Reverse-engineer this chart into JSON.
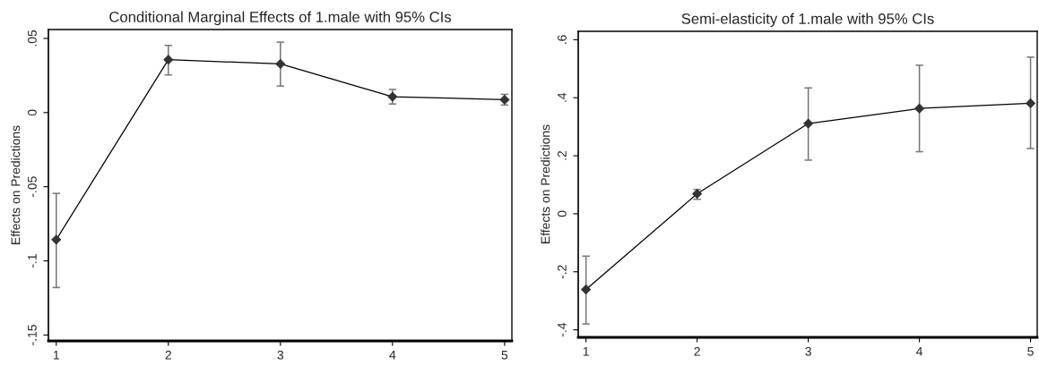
{
  "chart_data": [
    {
      "type": "line",
      "title": "Conditional Marginal Effects of 1.male with 95% CIs",
      "ylabel": "Effects on Predictions",
      "x": [
        1,
        2,
        3,
        4,
        5
      ],
      "xlim": [
        0.93,
        5.065
      ],
      "xticks": [
        1,
        2,
        3,
        4,
        5
      ],
      "ylim": [
        -0.154,
        0.056
      ],
      "yticks": [
        {
          "value": -0.15,
          "label": "-.15"
        },
        {
          "value": -0.1,
          "label": "-.1"
        },
        {
          "value": -0.05,
          "label": "-.05"
        },
        {
          "value": 0,
          "label": "0"
        },
        {
          "value": 0.05,
          "label": ".05"
        }
      ],
      "marker": "diamond",
      "line_style": "solid",
      "series": [
        {
          "color": "#333333",
          "values": [
            -0.0857,
            0.0357,
            0.0328,
            0.0107,
            0.0087
          ],
          "errors": [
            [
              -0.118,
              -0.0545
            ],
            [
              0.0254,
              0.0453
            ],
            [
              0.0179,
              0.0475
            ],
            [
              0.0058,
              0.0156
            ],
            [
              0.0051,
              0.0123
            ]
          ]
        }
      ]
    },
    {
      "type": "line",
      "title": "Semi-elasticity of 1.male with 95% CIs",
      "ylabel": "Effects on Predictions",
      "x": [
        1,
        2,
        3,
        4,
        5
      ],
      "xlim": [
        0.93,
        5.06
      ],
      "xticks": [
        1,
        2,
        3,
        4,
        5
      ],
      "ylim": [
        -0.426,
        0.629
      ],
      "yticks": [
        {
          "value": -0.4,
          "label": "-.4"
        },
        {
          "value": -0.2,
          "label": "-.2"
        },
        {
          "value": 0,
          "label": "0"
        },
        {
          "value": 0.2,
          "label": ".2"
        },
        {
          "value": 0.4,
          "label": ".4"
        },
        {
          "value": 0.6,
          "label": ".6"
        }
      ],
      "marker": "diamond",
      "line_style": "solid",
      "series": [
        {
          "color": "#333333",
          "values": [
            -0.261,
            0.069,
            0.311,
            0.363,
            0.381
          ],
          "errors": [
            [
              -0.38,
              -0.146
            ],
            [
              0.05,
              0.084
            ],
            [
              0.185,
              0.434
            ],
            [
              0.214,
              0.512
            ],
            [
              0.225,
              0.54
            ]
          ]
        }
      ]
    }
  ]
}
